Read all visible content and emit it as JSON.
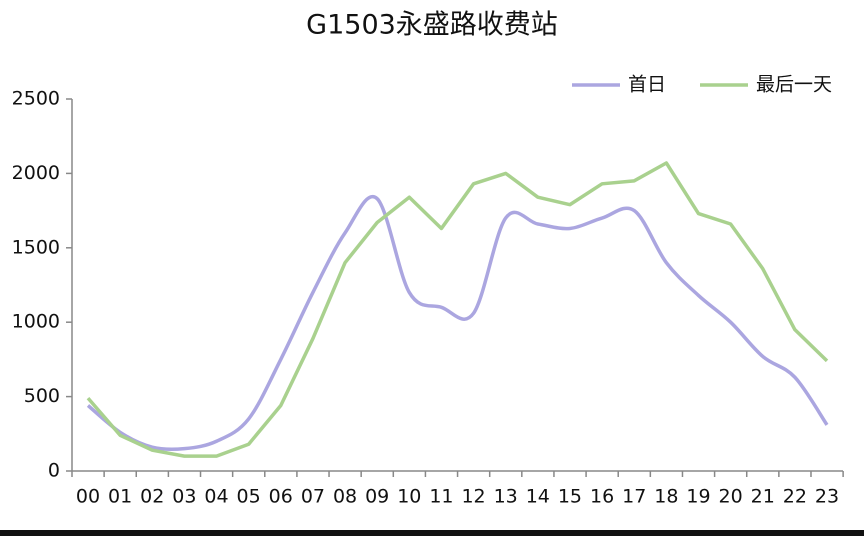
{
  "chart_data": {
    "type": "line",
    "title": "G1503永盛路收费站",
    "categories": [
      "00",
      "01",
      "02",
      "03",
      "04",
      "05",
      "06",
      "07",
      "08",
      "09",
      "10",
      "11",
      "12",
      "13",
      "14",
      "15",
      "16",
      "17",
      "18",
      "19",
      "20",
      "21",
      "22",
      "23"
    ],
    "series": [
      {
        "name": "首日",
        "color": "#aba6e0",
        "smooth": true,
        "values": [
          440,
          260,
          160,
          150,
          200,
          350,
          750,
          1200,
          1600,
          1830,
          1200,
          1100,
          1060,
          1700,
          1660,
          1630,
          1700,
          1750,
          1400,
          1180,
          1000,
          770,
          630,
          310
        ]
      },
      {
        "name": "最后一天",
        "color": "#a9d18e",
        "smooth": false,
        "values": [
          490,
          240,
          140,
          100,
          100,
          180,
          440,
          890,
          1400,
          1670,
          1840,
          1630,
          1930,
          2000,
          1840,
          1790,
          1930,
          1950,
          2070,
          1730,
          1660,
          1360,
          950,
          740
        ]
      }
    ],
    "ylim": [
      0,
      2500
    ],
    "yticks": [
      0,
      500,
      1000,
      1500,
      2000,
      2500
    ],
    "grid": false,
    "legend": "top-right"
  }
}
